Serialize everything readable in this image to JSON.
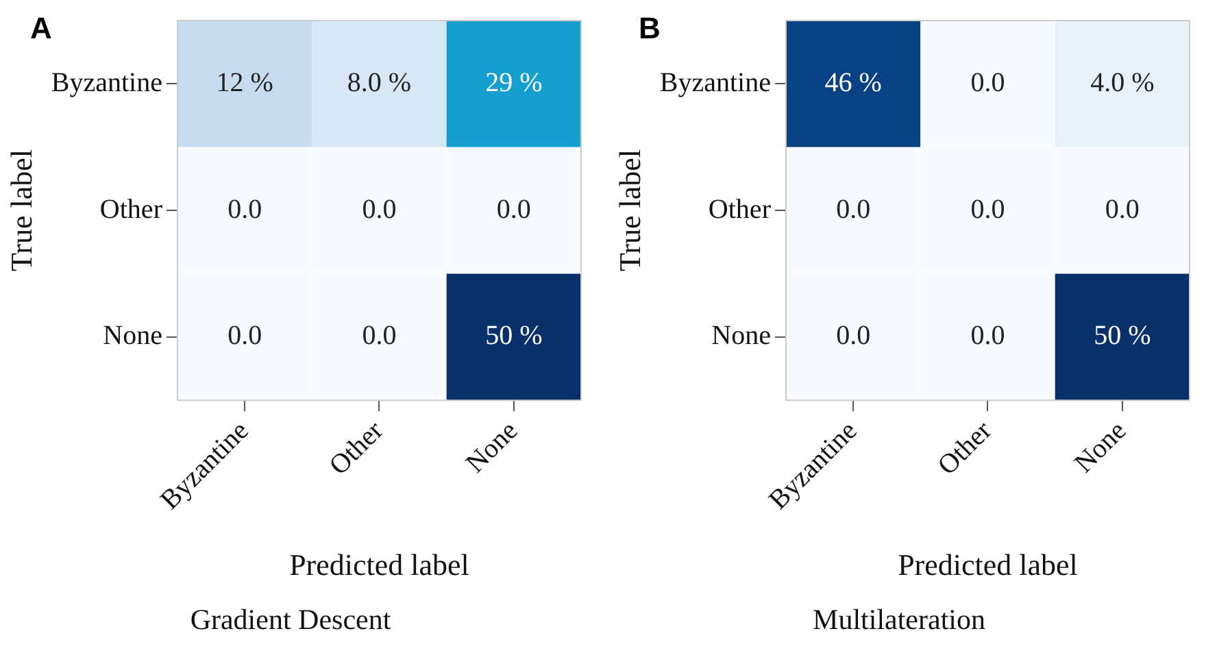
{
  "chart_data": [
    {
      "type": "heatmap",
      "title": "Gradient Descent",
      "xlabel": "Predicted label",
      "ylabel": "True label",
      "annotations": [
        "A"
      ],
      "categories": [
        "Byzantine",
        "Other",
        "None"
      ],
      "y_categories": [
        "Byzantine",
        "Other",
        "None"
      ],
      "cells": [
        [
          12,
          8.0,
          29
        ],
        [
          0.0,
          0.0,
          0.0
        ],
        [
          0.0,
          0.0,
          50
        ]
      ],
      "cell_labels": [
        [
          "12 %",
          "8.0 %",
          "29 %"
        ],
        [
          "0.0",
          "0.0",
          "0.0"
        ],
        [
          "0.0",
          "0.0",
          "50 %"
        ]
      ]
    },
    {
      "type": "heatmap",
      "title": "Multilateration",
      "xlabel": "Predicted label",
      "ylabel": "True label",
      "annotations": [
        "B"
      ],
      "categories": [
        "Byzantine",
        "Other",
        "None"
      ],
      "y_categories": [
        "Byzantine",
        "Other",
        "None"
      ],
      "cells": [
        [
          46,
          0.0,
          4.0
        ],
        [
          0.0,
          0.0,
          0.0
        ],
        [
          0.0,
          0.0,
          50
        ]
      ],
      "cell_labels": [
        [
          "46 %",
          "0.0",
          "4.0 %"
        ],
        [
          "0.0",
          "0.0",
          "0.0"
        ],
        [
          "0.0",
          "0.0",
          "50 %"
        ]
      ]
    }
  ]
}
